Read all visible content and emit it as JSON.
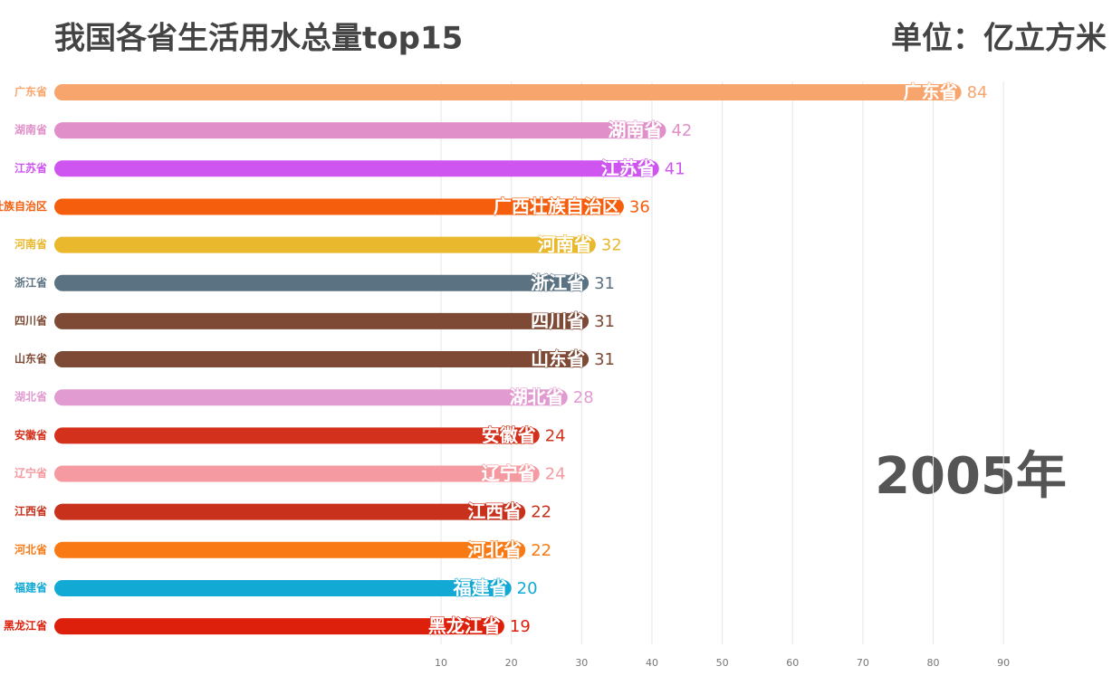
{
  "chart_data": {
    "type": "bar",
    "orientation": "horizontal",
    "title": "我国各省生活用水总量top15",
    "unit": "单位：亿立方米",
    "period": "2005年",
    "categories": [
      "广东省",
      "湖南省",
      "江苏省",
      "广西壮族自治区",
      "河南省",
      "浙江省",
      "四川省",
      "山东省",
      "湖北省",
      "安徽省",
      "辽宁省",
      "江西省",
      "河北省",
      "福建省",
      "黑龙江省"
    ],
    "values": [
      84,
      42,
      41,
      36,
      32,
      31,
      31,
      31,
      28,
      24,
      24,
      22,
      22,
      20,
      19
    ],
    "colors": [
      "#f7a56c",
      "#e08fc8",
      "#cf55f0",
      "#f45e0c",
      "#e9b82c",
      "#5b7282",
      "#7e4a35",
      "#7e4a35",
      "#e29bd1",
      "#d3311c",
      "#f49aa0",
      "#c8321c",
      "#f97a14",
      "#12a9d4",
      "#dd200b"
    ],
    "xlim": [
      -45,
      95
    ],
    "xticks": [
      10,
      20,
      30,
      40,
      50,
      60,
      70,
      80,
      90
    ],
    "grid": true
  }
}
